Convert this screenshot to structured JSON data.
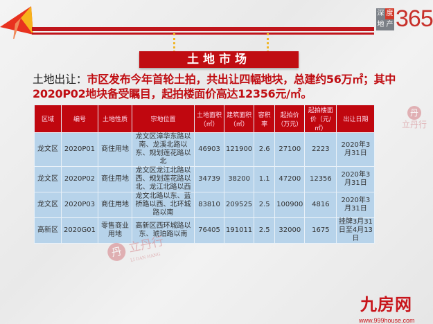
{
  "banner": {
    "title": "土地市场"
  },
  "logo": {
    "chars": [
      "深",
      "度",
      "地",
      "产"
    ],
    "number": "365"
  },
  "headline": {
    "lead": "土地出让：",
    "text": "市区发布今年首轮土拍，共出让四幅地块，总建约56万㎡；其中2020P02地块备受瞩目，起拍楼面价高达12356元/㎡。"
  },
  "table": {
    "headers": [
      "区域",
      "编号",
      "土地性质",
      "宗地位置",
      "土地面积（㎡）",
      "建筑面积（㎡）",
      "容积率",
      "起拍价（万元）",
      "起拍楼面价（元/㎡）",
      "出让日期"
    ],
    "rows": [
      [
        "龙文区",
        "2020P01",
        "商住用地",
        "龙文区漳华东路以南、龙溪北路以东、规划莲花路以北",
        "46903",
        "121900",
        "2.6",
        "27100",
        "2223",
        "2020年3月31日"
      ],
      [
        "龙文区",
        "2020P02",
        "商住用地",
        "龙文区龙江北路以西、规划莲花路以北、龙江北路以西",
        "34739",
        "38200",
        "1.1",
        "47200",
        "12356",
        "2020年3月31日"
      ],
      [
        "龙文区",
        "2020P03",
        "商住用地",
        "龙文北路以东、蓝桥路以西、北环城路以南",
        "83810",
        "209525",
        "2.5",
        "100900",
        "4816",
        "2020年3月31日"
      ],
      [
        "高新区",
        "2020G01",
        "零售商业用地",
        "高新区西环城路以东、琥珀路以南",
        "76405",
        "191011",
        "2.5",
        "32000",
        "1675",
        "挂牌3月31日至4月13日"
      ]
    ]
  },
  "watermarks": {
    "lidanhang": "立丹行",
    "lidanhang_en": "LI DAN HANG",
    "seal": "丹"
  },
  "footer": {
    "brand": "九房网",
    "url": "www.999house.com"
  },
  "colors": {
    "accent": "#c00d12",
    "table_body": "#b7d3ea",
    "table_header": "#c0070f"
  }
}
